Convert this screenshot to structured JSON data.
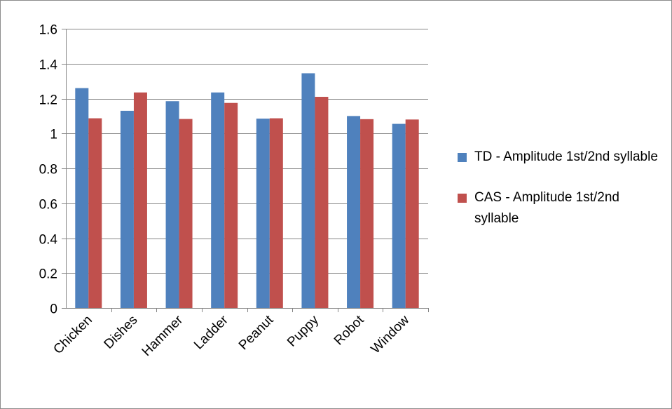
{
  "chart_data": {
    "type": "bar",
    "categories": [
      "Chicken",
      "Dishes",
      "Hammer",
      "Ladder",
      "Peanut",
      "Puppy",
      "Robot",
      "Window"
    ],
    "series": [
      {
        "name": "TD - Amplitude 1st/2nd syllable",
        "color": "#4f81bd",
        "values": [
          1.26,
          1.13,
          1.185,
          1.235,
          1.085,
          1.345,
          1.1,
          1.055
        ]
      },
      {
        "name": "CAS - Amplitude 1st/2nd syllable",
        "color": "#c0504d",
        "values": [
          1.087,
          1.235,
          1.083,
          1.175,
          1.087,
          1.21,
          1.082,
          1.08
        ]
      }
    ],
    "yticks": [
      "0",
      "0.2",
      "0.4",
      "0.6",
      "0.8",
      "1",
      "1.2",
      "1.4",
      "1.6"
    ],
    "ylim": [
      0,
      1.6
    ],
    "grid": true,
    "legend_position": "right",
    "gridline_color": "#868686"
  }
}
